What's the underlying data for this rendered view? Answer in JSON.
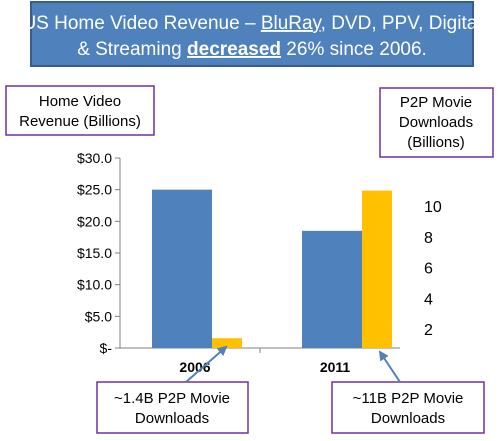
{
  "title": {
    "line1_prefix": "US Home Video Revenue – ",
    "line1_underlined": "BluRay",
    "line1_suffix": ", DVD, PPV, Digital",
    "line2_prefix": "& Streaming ",
    "line2_emphasis": "decreased",
    "line2_suffix": " 26% since 2006."
  },
  "left_axis_box": {
    "line1": "Home Video",
    "line2": "Revenue (Billions)"
  },
  "right_axis_box": {
    "line1": "P2P Movie",
    "line2": "Downloads",
    "line3": "(Billions)"
  },
  "callouts": [
    {
      "line1": "~1.4B P2P Movie",
      "line2": "Downloads"
    },
    {
      "line1": "~11B P2P Movie",
      "line2": "Downloads"
    }
  ],
  "colors": {
    "title_fill": "#4f81bd",
    "title_border": "#385d8a",
    "box_border": "#7030a0",
    "revenue_bar": "#4f81bd",
    "downloads_bar": "#ffc000",
    "arrow": "#4f81bd",
    "axis": "#808080"
  },
  "chart_data": {
    "type": "bar",
    "categories": [
      "2006",
      "2011"
    ],
    "series": [
      {
        "axis": "left",
        "values": [
          25.0,
          18.5
        ]
      },
      {
        "axis": "right",
        "values": [
          1.4,
          11
        ]
      }
    ],
    "left_axis": {
      "ylim": [
        0,
        30
      ],
      "tick_values": [
        0,
        5,
        10,
        15,
        20,
        25,
        30
      ],
      "tick_labels": [
        "$-",
        "$5.0",
        "$10.0",
        "$15.0",
        "$20.0",
        "$25.0",
        "$30.0"
      ]
    },
    "right_axis": {
      "tick_values": [
        2,
        4,
        6,
        8,
        10
      ],
      "tick_labels": [
        "2",
        "4",
        "6",
        "8",
        "10"
      ]
    },
    "grid": false,
    "legend": "none"
  }
}
